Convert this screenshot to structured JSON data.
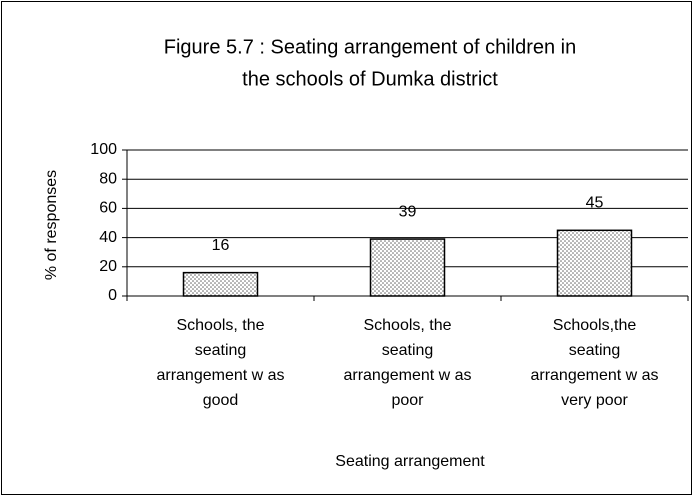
{
  "chart_data": {
    "type": "bar",
    "title": [
      "Figure 5.7 : Seating arrangement of children in",
      "the schools of Dumka district"
    ],
    "categories": [
      [
        "Schools, the",
        "seating",
        "arrangement w as",
        "good"
      ],
      [
        "Schools, the",
        "seating",
        "arrangement w as",
        "poor"
      ],
      [
        "Schools,the",
        "seating",
        "arrangement w as",
        "very poor"
      ]
    ],
    "values": [
      16,
      39,
      45
    ],
    "color": "#666666",
    "xlabel": "Seating arrangement",
    "ylabel": "% of responses",
    "ylim": [
      0,
      100
    ],
    "yticks": [
      0,
      20,
      40,
      60,
      80,
      100
    ],
    "grid": true
  }
}
